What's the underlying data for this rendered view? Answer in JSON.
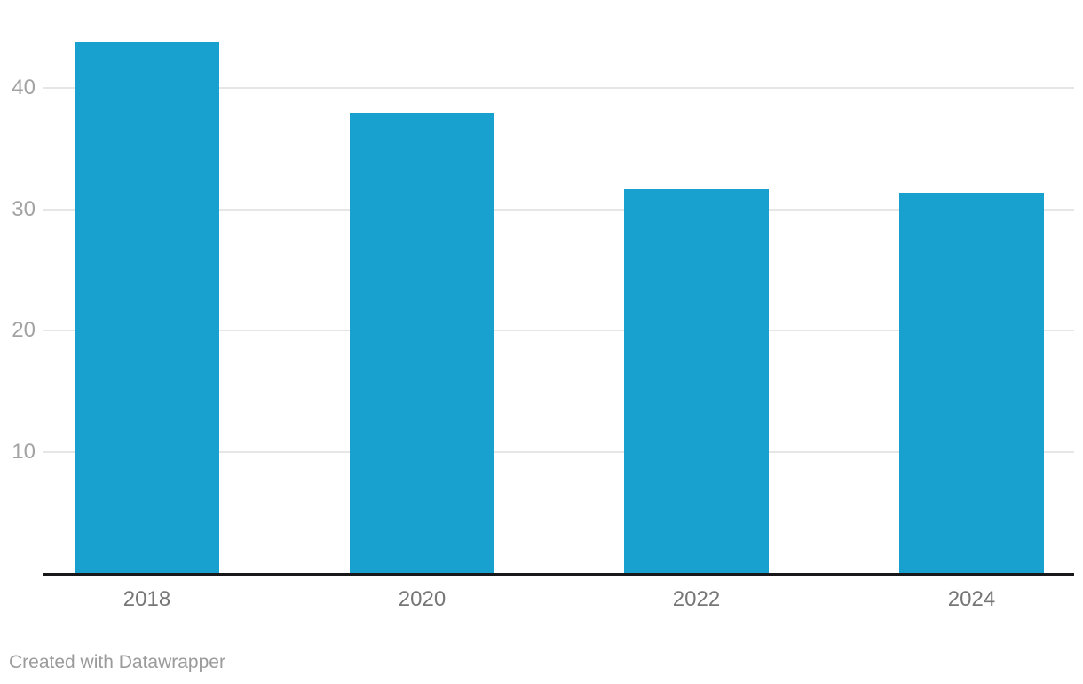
{
  "chart_data": {
    "type": "bar",
    "categories": [
      "2018",
      "2020",
      "2022",
      "2024"
    ],
    "values": [
      43.7,
      37.9,
      31.6,
      31.3
    ],
    "title": "",
    "xlabel": "",
    "ylabel": "",
    "ylim": [
      0,
      45
    ],
    "yticks": [
      10,
      20,
      30,
      40
    ],
    "grid": true,
    "legend": false,
    "bar_color": "#18A0CE"
  },
  "colors": {
    "bar": "#18A0CE",
    "grid": "#e6e6e6",
    "axis": "#18181a",
    "y_tick_label": "#a3a3a3",
    "x_tick_label": "#767676",
    "attribution": "#9b9b9b",
    "background": "#ffffff"
  },
  "attribution": {
    "text": "Created with Datawrapper"
  }
}
